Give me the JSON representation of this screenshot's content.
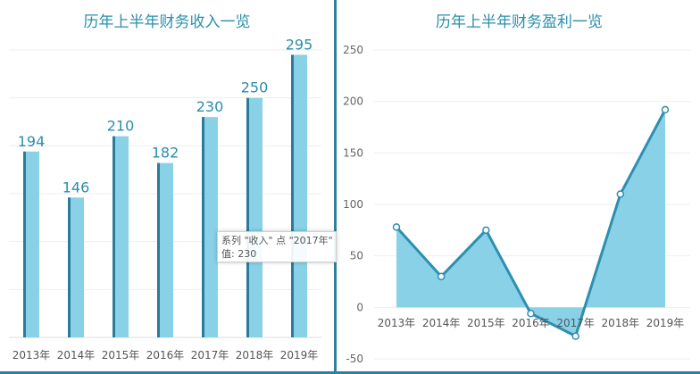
{
  "colors": {
    "fill": "#89d1e6",
    "line": "#2e8fb0",
    "edge": "#2b7c99",
    "label": "#2a8fab",
    "axis": "#666666",
    "grid": "#eeeeee"
  },
  "chart_data": [
    {
      "type": "bar",
      "title": "历年上半年财务收入一览",
      "categories": [
        "2013年",
        "2014年",
        "2015年",
        "2016年",
        "2017年",
        "2018年",
        "2019年"
      ],
      "values": [
        194,
        146,
        210,
        182,
        230,
        250,
        295
      ],
      "ylim": [
        0,
        300
      ],
      "grid": true
    },
    {
      "type": "area",
      "title": "历年上半年财务盈利一览",
      "categories": [
        "2013年",
        "2014年",
        "2015年",
        "2016年",
        "2017年",
        "2018年",
        "2019年"
      ],
      "values": [
        78,
        30,
        75,
        -6,
        -28,
        110,
        192
      ],
      "ylim": [
        -50,
        250
      ],
      "yticks": [
        -50,
        0,
        50,
        100,
        150,
        200,
        250
      ],
      "grid": true
    }
  ],
  "tooltip": {
    "line1": "系列 \"收入\" 点 \"2017年\"",
    "line2": "值: 230"
  }
}
